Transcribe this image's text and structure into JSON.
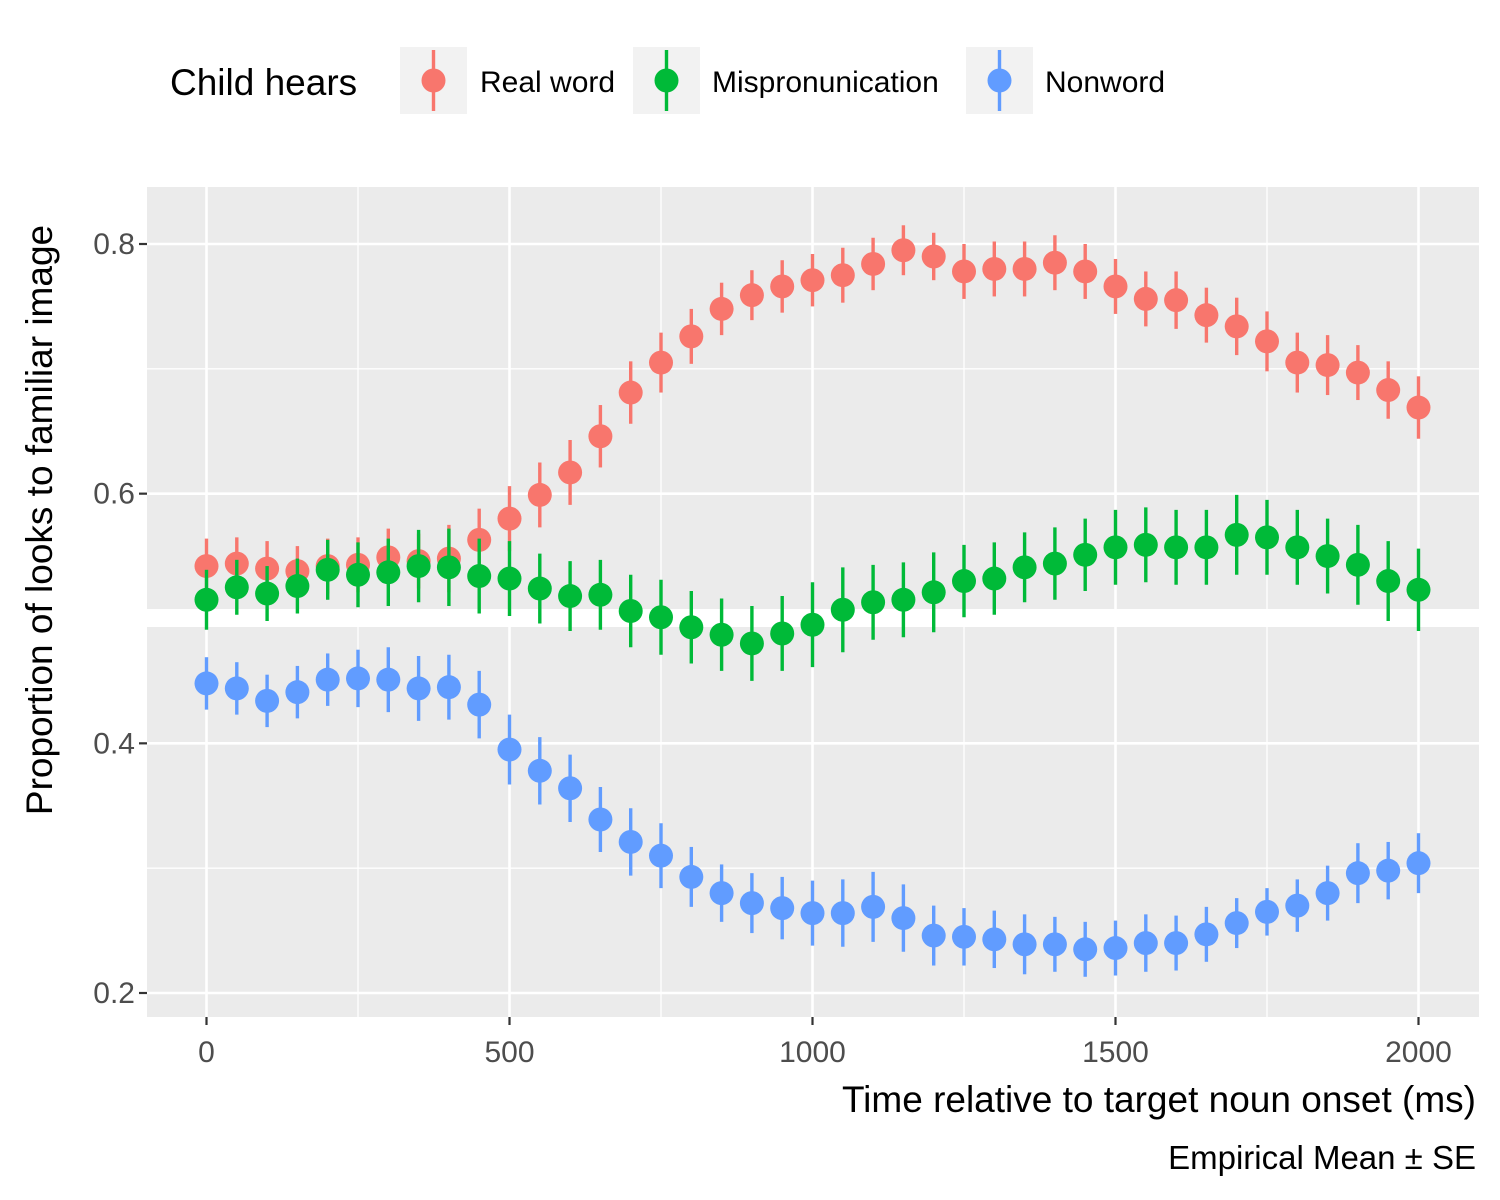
{
  "chart_data": {
    "type": "scatter",
    "xlabel": "Time relative to target noun onset (ms)",
    "ylabel": "Proportion of looks to familiar image",
    "caption": "Empirical Mean ± SE",
    "xlim": [
      -100,
      2100
    ],
    "ylim": [
      0.18,
      0.84
    ],
    "x_ticks": [
      0,
      500,
      1000,
      1500,
      2000
    ],
    "x_tick_labels": [
      "0",
      "500",
      "1000",
      "1500",
      "2000"
    ],
    "y_ticks": [
      0.2,
      0.4,
      0.6,
      0.8
    ],
    "y_tick_labels": [
      "0.2",
      "0.4",
      "0.6",
      "0.8"
    ],
    "grid": true,
    "reference_line_y": 0.5,
    "legend": {
      "title": "Child hears",
      "position": "top"
    },
    "x": [
      0,
      50,
      100,
      150,
      200,
      250,
      300,
      350,
      400,
      450,
      500,
      550,
      600,
      650,
      700,
      750,
      800,
      850,
      900,
      950,
      1000,
      1050,
      1100,
      1150,
      1200,
      1250,
      1300,
      1350,
      1400,
      1450,
      1500,
      1550,
      1600,
      1650,
      1700,
      1750,
      1800,
      1850,
      1900,
      1950,
      2000
    ],
    "series": [
      {
        "name": "Real word",
        "color": "#F8766D",
        "values": [
          0.542,
          0.544,
          0.54,
          0.538,
          0.542,
          0.543,
          0.549,
          0.546,
          0.548,
          0.563,
          0.58,
          0.599,
          0.617,
          0.646,
          0.681,
          0.705,
          0.726,
          0.748,
          0.759,
          0.766,
          0.771,
          0.775,
          0.784,
          0.795,
          0.79,
          0.778,
          0.78,
          0.78,
          0.785,
          0.778,
          0.766,
          0.756,
          0.755,
          0.743,
          0.734,
          0.722,
          0.705,
          0.703,
          0.697,
          0.683,
          0.669
        ],
        "se": [
          0.022,
          0.021,
          0.022,
          0.02,
          0.022,
          0.022,
          0.023,
          0.022,
          0.027,
          0.025,
          0.026,
          0.026,
          0.026,
          0.025,
          0.025,
          0.024,
          0.022,
          0.021,
          0.02,
          0.021,
          0.021,
          0.022,
          0.021,
          0.02,
          0.019,
          0.022,
          0.022,
          0.022,
          0.022,
          0.022,
          0.022,
          0.022,
          0.023,
          0.022,
          0.023,
          0.024,
          0.024,
          0.024,
          0.022,
          0.023,
          0.025
        ]
      },
      {
        "name": "Mispronunication",
        "color": "#00BA38",
        "values": [
          0.515,
          0.525,
          0.52,
          0.526,
          0.539,
          0.535,
          0.537,
          0.542,
          0.541,
          0.534,
          0.532,
          0.524,
          0.518,
          0.519,
          0.506,
          0.501,
          0.493,
          0.487,
          0.48,
          0.488,
          0.495,
          0.507,
          0.513,
          0.515,
          0.521,
          0.53,
          0.532,
          0.541,
          0.544,
          0.551,
          0.557,
          0.559,
          0.557,
          0.557,
          0.567,
          0.565,
          0.557,
          0.55,
          0.543,
          0.53,
          0.523
        ],
        "se": [
          0.024,
          0.022,
          0.022,
          0.022,
          0.024,
          0.026,
          0.027,
          0.029,
          0.031,
          0.03,
          0.03,
          0.028,
          0.028,
          0.028,
          0.029,
          0.03,
          0.029,
          0.029,
          0.03,
          0.03,
          0.034,
          0.034,
          0.03,
          0.03,
          0.032,
          0.029,
          0.029,
          0.028,
          0.029,
          0.029,
          0.03,
          0.03,
          0.03,
          0.03,
          0.032,
          0.03,
          0.03,
          0.03,
          0.032,
          0.032,
          0.033
        ]
      },
      {
        "name": "Nonword",
        "color": "#619CFF",
        "values": [
          0.448,
          0.444,
          0.434,
          0.441,
          0.451,
          0.452,
          0.451,
          0.444,
          0.445,
          0.431,
          0.395,
          0.378,
          0.364,
          0.339,
          0.321,
          0.31,
          0.293,
          0.28,
          0.272,
          0.268,
          0.264,
          0.264,
          0.269,
          0.26,
          0.246,
          0.245,
          0.243,
          0.239,
          0.239,
          0.235,
          0.236,
          0.24,
          0.24,
          0.247,
          0.256,
          0.265,
          0.27,
          0.28,
          0.296,
          0.298,
          0.304
        ],
        "se": [
          0.021,
          0.021,
          0.021,
          0.021,
          0.021,
          0.023,
          0.026,
          0.026,
          0.026,
          0.027,
          0.028,
          0.027,
          0.027,
          0.026,
          0.027,
          0.026,
          0.024,
          0.023,
          0.024,
          0.025,
          0.026,
          0.027,
          0.028,
          0.027,
          0.024,
          0.023,
          0.023,
          0.024,
          0.022,
          0.022,
          0.022,
          0.023,
          0.022,
          0.022,
          0.02,
          0.019,
          0.021,
          0.022,
          0.024,
          0.023,
          0.024
        ]
      }
    ]
  }
}
